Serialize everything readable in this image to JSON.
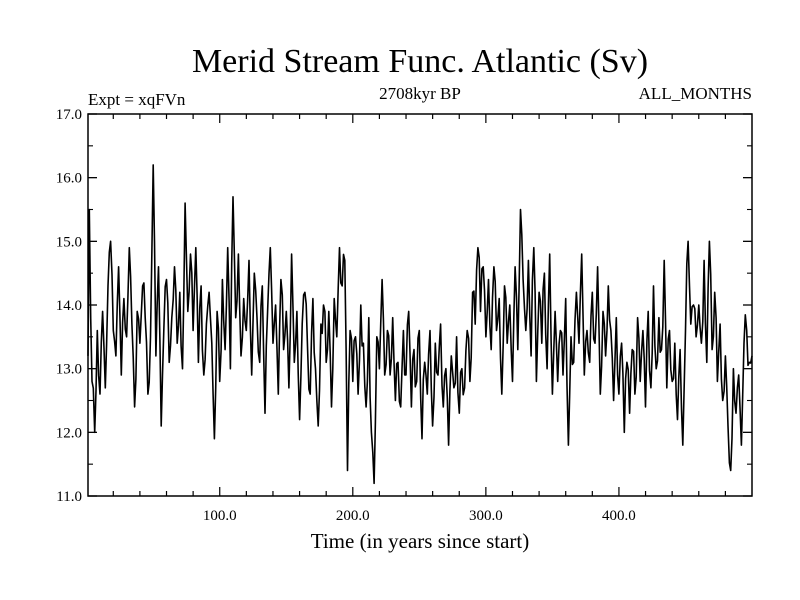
{
  "chart_data": {
    "type": "line",
    "title": "Merid Stream Func. Atlantic (Sv)",
    "left_label": "Expt = xqFVn",
    "center_label": "2708kyr BP",
    "right_label": "ALL_MONTHS",
    "xlabel": "Time (in years since start)",
    "ylabel": "",
    "xlim": [
      1,
      500
    ],
    "ylim": [
      11.0,
      17.0
    ],
    "x_ticks": [
      100,
      200,
      300,
      400
    ],
    "x_tick_labels": [
      "100.0",
      "200.0",
      "300.0",
      "400.0"
    ],
    "y_ticks": [
      11,
      12,
      13,
      14,
      15,
      16,
      17
    ],
    "y_tick_labels": [
      "11.0",
      "12.0",
      "13.0",
      "14.0",
      "15.0",
      "16.0",
      "17.0"
    ],
    "series": [
      {
        "name": "Merid Stream Func. Atlantic",
        "x_start": 1,
        "x_step": 1,
        "anchors": [
          [
            1,
            13.2
          ],
          [
            2,
            15.5
          ],
          [
            4,
            12.8
          ],
          [
            6,
            12.0
          ],
          [
            8,
            13.6
          ],
          [
            10,
            12.6
          ],
          [
            12,
            13.9
          ],
          [
            14,
            12.7
          ],
          [
            16,
            14.3
          ],
          [
            18,
            15.0
          ],
          [
            20,
            13.6
          ],
          [
            22,
            13.2
          ],
          [
            24,
            14.6
          ],
          [
            26,
            12.9
          ],
          [
            28,
            14.1
          ],
          [
            30,
            13.5
          ],
          [
            32,
            14.9
          ],
          [
            34,
            13.7
          ],
          [
            36,
            12.4
          ],
          [
            38,
            13.9
          ],
          [
            40,
            13.4
          ],
          [
            42,
            14.3
          ],
          [
            44,
            13.8
          ],
          [
            46,
            12.6
          ],
          [
            48,
            13.5
          ],
          [
            50,
            16.2
          ],
          [
            52,
            13.2
          ],
          [
            54,
            14.6
          ],
          [
            56,
            12.1
          ],
          [
            58,
            13.6
          ],
          [
            60,
            14.4
          ],
          [
            62,
            13.1
          ],
          [
            64,
            13.8
          ],
          [
            66,
            14.6
          ],
          [
            68,
            13.4
          ],
          [
            70,
            14.2
          ],
          [
            72,
            13.0
          ],
          [
            74,
            15.6
          ],
          [
            76,
            13.9
          ],
          [
            78,
            14.8
          ],
          [
            80,
            13.6
          ],
          [
            82,
            14.9
          ],
          [
            84,
            13.1
          ],
          [
            86,
            14.3
          ],
          [
            88,
            12.9
          ],
          [
            90,
            13.7
          ],
          [
            92,
            14.2
          ],
          [
            94,
            13.4
          ],
          [
            96,
            11.9
          ],
          [
            98,
            13.9
          ],
          [
            100,
            12.8
          ],
          [
            102,
            14.4
          ],
          [
            104,
            13.3
          ],
          [
            106,
            14.9
          ],
          [
            108,
            13.0
          ],
          [
            110,
            15.7
          ],
          [
            112,
            13.8
          ],
          [
            114,
            14.8
          ],
          [
            116,
            13.2
          ],
          [
            118,
            14.1
          ],
          [
            120,
            13.6
          ],
          [
            122,
            14.7
          ],
          [
            124,
            12.9
          ],
          [
            126,
            14.5
          ],
          [
            128,
            13.8
          ],
          [
            130,
            13.1
          ],
          [
            132,
            14.3
          ],
          [
            134,
            12.3
          ],
          [
            136,
            13.9
          ],
          [
            138,
            14.9
          ],
          [
            140,
            13.4
          ],
          [
            142,
            14.0
          ],
          [
            144,
            12.6
          ],
          [
            146,
            14.4
          ],
          [
            148,
            13.3
          ],
          [
            150,
            13.9
          ],
          [
            152,
            12.7
          ],
          [
            154,
            14.8
          ],
          [
            156,
            13.1
          ],
          [
            158,
            13.9
          ],
          [
            160,
            12.2
          ],
          [
            162,
            13.7
          ],
          [
            164,
            14.2
          ],
          [
            166,
            13.3
          ],
          [
            168,
            12.6
          ],
          [
            170,
            14.1
          ],
          [
            172,
            13.0
          ],
          [
            174,
            12.1
          ],
          [
            176,
            13.7
          ],
          [
            178,
            14.0
          ],
          [
            180,
            13.1
          ],
          [
            182,
            13.9
          ],
          [
            184,
            12.4
          ],
          [
            186,
            14.1
          ],
          [
            188,
            13.5
          ],
          [
            190,
            14.9
          ],
          [
            192,
            14.3
          ],
          [
            194,
            14.7
          ],
          [
            196,
            11.4
          ],
          [
            198,
            13.6
          ],
          [
            200,
            12.8
          ],
          [
            202,
            13.5
          ],
          [
            204,
            12.6
          ],
          [
            206,
            14.0
          ],
          [
            208,
            13.4
          ],
          [
            210,
            12.4
          ],
          [
            212,
            13.8
          ],
          [
            214,
            12.0
          ],
          [
            216,
            11.2
          ],
          [
            218,
            13.5
          ],
          [
            220,
            13.0
          ],
          [
            222,
            14.4
          ],
          [
            224,
            12.9
          ],
          [
            226,
            13.6
          ],
          [
            228,
            12.9
          ],
          [
            230,
            13.8
          ],
          [
            232,
            12.5
          ],
          [
            234,
            13.1
          ],
          [
            236,
            12.4
          ],
          [
            238,
            13.6
          ],
          [
            240,
            12.9
          ],
          [
            242,
            13.9
          ],
          [
            244,
            12.4
          ],
          [
            246,
            13.3
          ],
          [
            248,
            12.8
          ],
          [
            250,
            13.6
          ],
          [
            252,
            11.9
          ],
          [
            254,
            13.1
          ],
          [
            256,
            12.6
          ],
          [
            258,
            13.6
          ],
          [
            260,
            12.1
          ],
          [
            262,
            13.4
          ],
          [
            264,
            12.9
          ],
          [
            266,
            13.7
          ],
          [
            268,
            12.4
          ],
          [
            270,
            13.0
          ],
          [
            272,
            11.8
          ],
          [
            274,
            13.2
          ],
          [
            276,
            12.7
          ],
          [
            278,
            13.5
          ],
          [
            280,
            12.3
          ],
          [
            282,
            13.0
          ],
          [
            284,
            12.7
          ],
          [
            286,
            13.6
          ],
          [
            288,
            12.8
          ],
          [
            290,
            14.2
          ],
          [
            292,
            13.7
          ],
          [
            294,
            14.9
          ],
          [
            296,
            13.9
          ],
          [
            298,
            14.6
          ],
          [
            300,
            13.5
          ],
          [
            302,
            14.4
          ],
          [
            304,
            13.3
          ],
          [
            306,
            14.6
          ],
          [
            308,
            13.6
          ],
          [
            310,
            14.1
          ],
          [
            312,
            12.6
          ],
          [
            314,
            14.3
          ],
          [
            316,
            13.4
          ],
          [
            318,
            14.0
          ],
          [
            320,
            12.8
          ],
          [
            322,
            14.6
          ],
          [
            324,
            13.3
          ],
          [
            326,
            15.5
          ],
          [
            328,
            14.4
          ],
          [
            330,
            13.6
          ],
          [
            332,
            14.7
          ],
          [
            334,
            13.2
          ],
          [
            336,
            14.9
          ],
          [
            338,
            12.8
          ],
          [
            340,
            14.2
          ],
          [
            342,
            13.4
          ],
          [
            344,
            14.5
          ],
          [
            346,
            13.0
          ],
          [
            348,
            14.8
          ],
          [
            350,
            12.6
          ],
          [
            352,
            13.9
          ],
          [
            354,
            12.8
          ],
          [
            356,
            13.6
          ],
          [
            358,
            12.9
          ],
          [
            360,
            14.1
          ],
          [
            362,
            11.8
          ],
          [
            364,
            13.5
          ],
          [
            366,
            13.1
          ],
          [
            368,
            14.2
          ],
          [
            370,
            13.4
          ],
          [
            372,
            14.8
          ],
          [
            374,
            12.9
          ],
          [
            376,
            13.6
          ],
          [
            378,
            13.1
          ],
          [
            380,
            14.2
          ],
          [
            382,
            13.4
          ],
          [
            384,
            14.6
          ],
          [
            386,
            12.6
          ],
          [
            388,
            13.9
          ],
          [
            390,
            13.2
          ],
          [
            392,
            14.3
          ],
          [
            394,
            13.6
          ],
          [
            396,
            12.5
          ],
          [
            398,
            13.8
          ],
          [
            400,
            12.6
          ],
          [
            402,
            13.4
          ],
          [
            404,
            12.0
          ],
          [
            406,
            13.1
          ],
          [
            408,
            12.3
          ],
          [
            410,
            13.3
          ],
          [
            412,
            12.6
          ],
          [
            414,
            13.8
          ],
          [
            416,
            12.8
          ],
          [
            418,
            13.6
          ],
          [
            420,
            12.4
          ],
          [
            422,
            13.9
          ],
          [
            424,
            12.7
          ],
          [
            426,
            14.3
          ],
          [
            428,
            13.0
          ],
          [
            430,
            13.8
          ],
          [
            432,
            13.3
          ],
          [
            434,
            14.7
          ],
          [
            436,
            12.7
          ],
          [
            438,
            13.6
          ],
          [
            440,
            12.8
          ],
          [
            442,
            13.4
          ],
          [
            444,
            12.2
          ],
          [
            446,
            13.3
          ],
          [
            448,
            11.8
          ],
          [
            450,
            13.6
          ],
          [
            452,
            15.0
          ],
          [
            454,
            13.7
          ],
          [
            456,
            14.0
          ],
          [
            458,
            13.5
          ],
          [
            460,
            14.0
          ],
          [
            462,
            13.4
          ],
          [
            464,
            14.7
          ],
          [
            466,
            13.1
          ],
          [
            468,
            15.0
          ],
          [
            470,
            13.3
          ],
          [
            472,
            14.2
          ],
          [
            474,
            12.8
          ],
          [
            476,
            13.7
          ],
          [
            478,
            12.5
          ],
          [
            480,
            13.2
          ],
          [
            482,
            12.1
          ],
          [
            484,
            11.4
          ],
          [
            486,
            13.0
          ],
          [
            488,
            12.3
          ],
          [
            490,
            12.9
          ],
          [
            492,
            11.8
          ],
          [
            494,
            13.4
          ],
          [
            496,
            13.6
          ],
          [
            498,
            13.1
          ],
          [
            500,
            13.2
          ]
        ]
      }
    ]
  }
}
